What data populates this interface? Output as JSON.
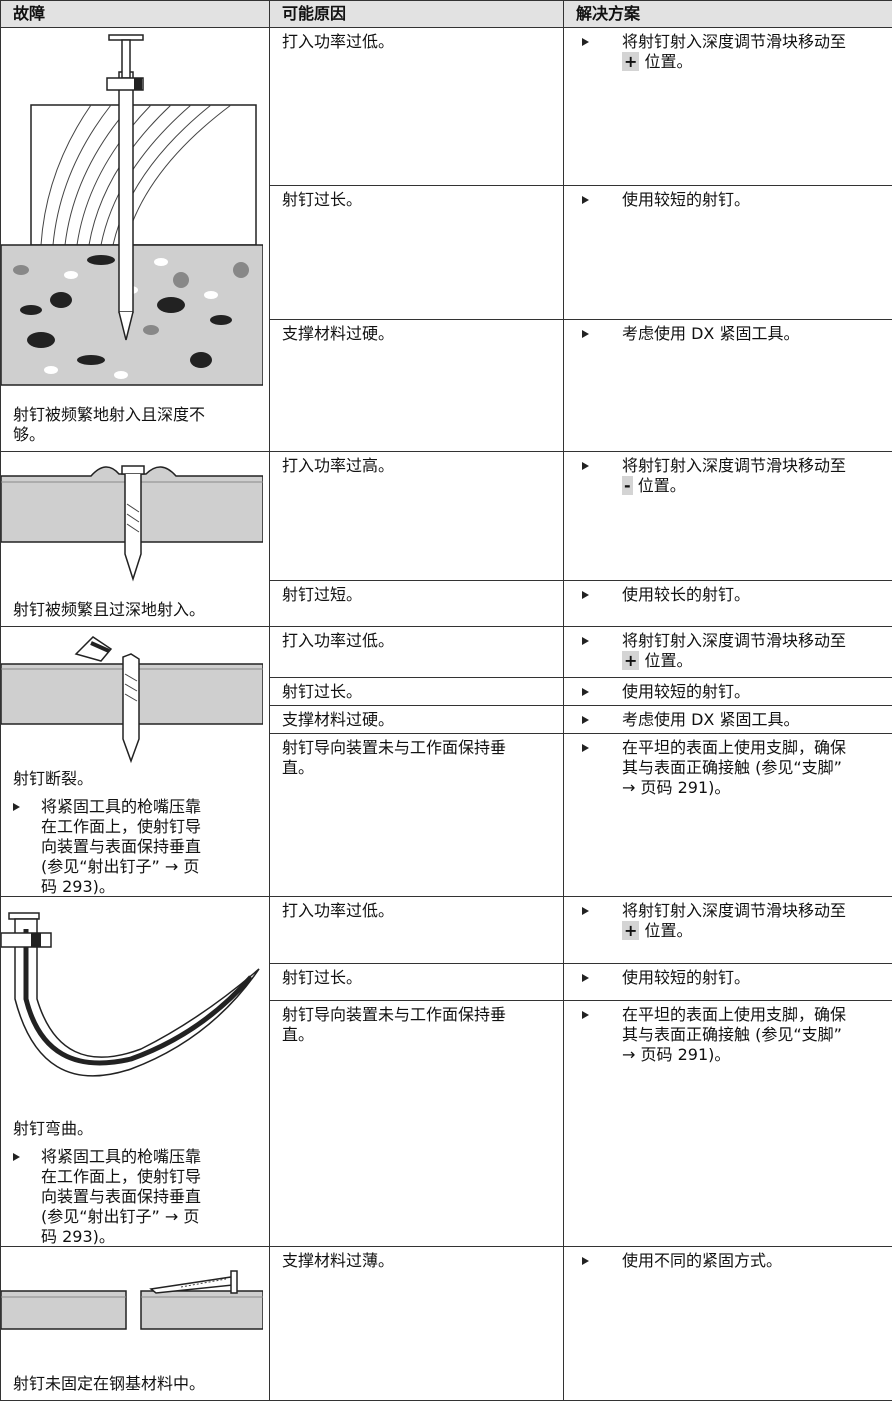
{
  "header": [
    "故障",
    "可能原因",
    "解决方案"
  ],
  "groups": [
    {
      "fault": "射钉被频繁地射入且深度不够。",
      "rows": [
        {
          "cause": "打入功率过低。",
          "solution": {
            "text": "将射钉射入深度调节滑块移动至",
            "key": "+",
            "after": "位置。"
          }
        },
        {
          "cause": "射钉过长。",
          "solution": "使用较短的射钉。"
        },
        {
          "cause": "支撑材料过硬。",
          "solution": "考虑使用 DX 紧固工具。"
        }
      ]
    },
    {
      "fault": "射钉被频繁且过深地射入。",
      "rows": [
        {
          "cause": "打入功率过高。",
          "solution": {
            "text": "将射钉射入深度调节滑块移动至",
            "key": "-",
            "after": "位置。"
          }
        },
        {
          "cause": "射钉过短。",
          "solution": "使用较长的射钉。"
        }
      ]
    },
    {
      "fault": "射钉断裂。",
      "action": "将紧固工具的枪嘴压靠在工作面上，使射钉导向装置与表面保持垂直 (参见“射出钉子” → 页码 293)。",
      "rows": [
        {
          "cause": "打入功率过低。",
          "solution": {
            "text": "将射钉射入深度调节滑块移动至",
            "key": "+",
            "after": "位置。"
          }
        },
        {
          "cause": "射钉过长。",
          "solution": "使用较短的射钉。"
        },
        {
          "cause": "支撑材料过硬。",
          "solution": "考虑使用 DX 紧固工具。"
        },
        {
          "cause": "射钉导向装置未与工作面保持垂直。",
          "solution": "在平坦的表面上使用支脚，确保其与表面正确接触 (参见“支脚” → 页码 291)。"
        }
      ]
    },
    {
      "fault": "射钉弯曲。",
      "action": "将紧固工具的枪嘴压靠在工作面上，使射钉导向装置与表面保持垂直 (参见“射出钉子” → 页码 293)。",
      "rows": [
        {
          "cause": "打入功率过低。",
          "solution": {
            "text": "将射钉射入深度调节滑块移动至",
            "key": "+",
            "after": "位置。"
          }
        },
        {
          "cause": "射钉过长。",
          "solution": "使用较短的射钉。"
        },
        {
          "cause": "射钉导向装置未与工作面保持垂直。",
          "solution": "在平坦的表面上使用支脚，确保其与表面正确接触 (参见“支脚” → 页码 291)。"
        }
      ]
    },
    {
      "fault": "射钉未固定在钢基材料中。",
      "rows": [
        {
          "cause": "支撑材料过薄。",
          "solution": "使用不同的紧固方式。"
        }
      ]
    }
  ]
}
